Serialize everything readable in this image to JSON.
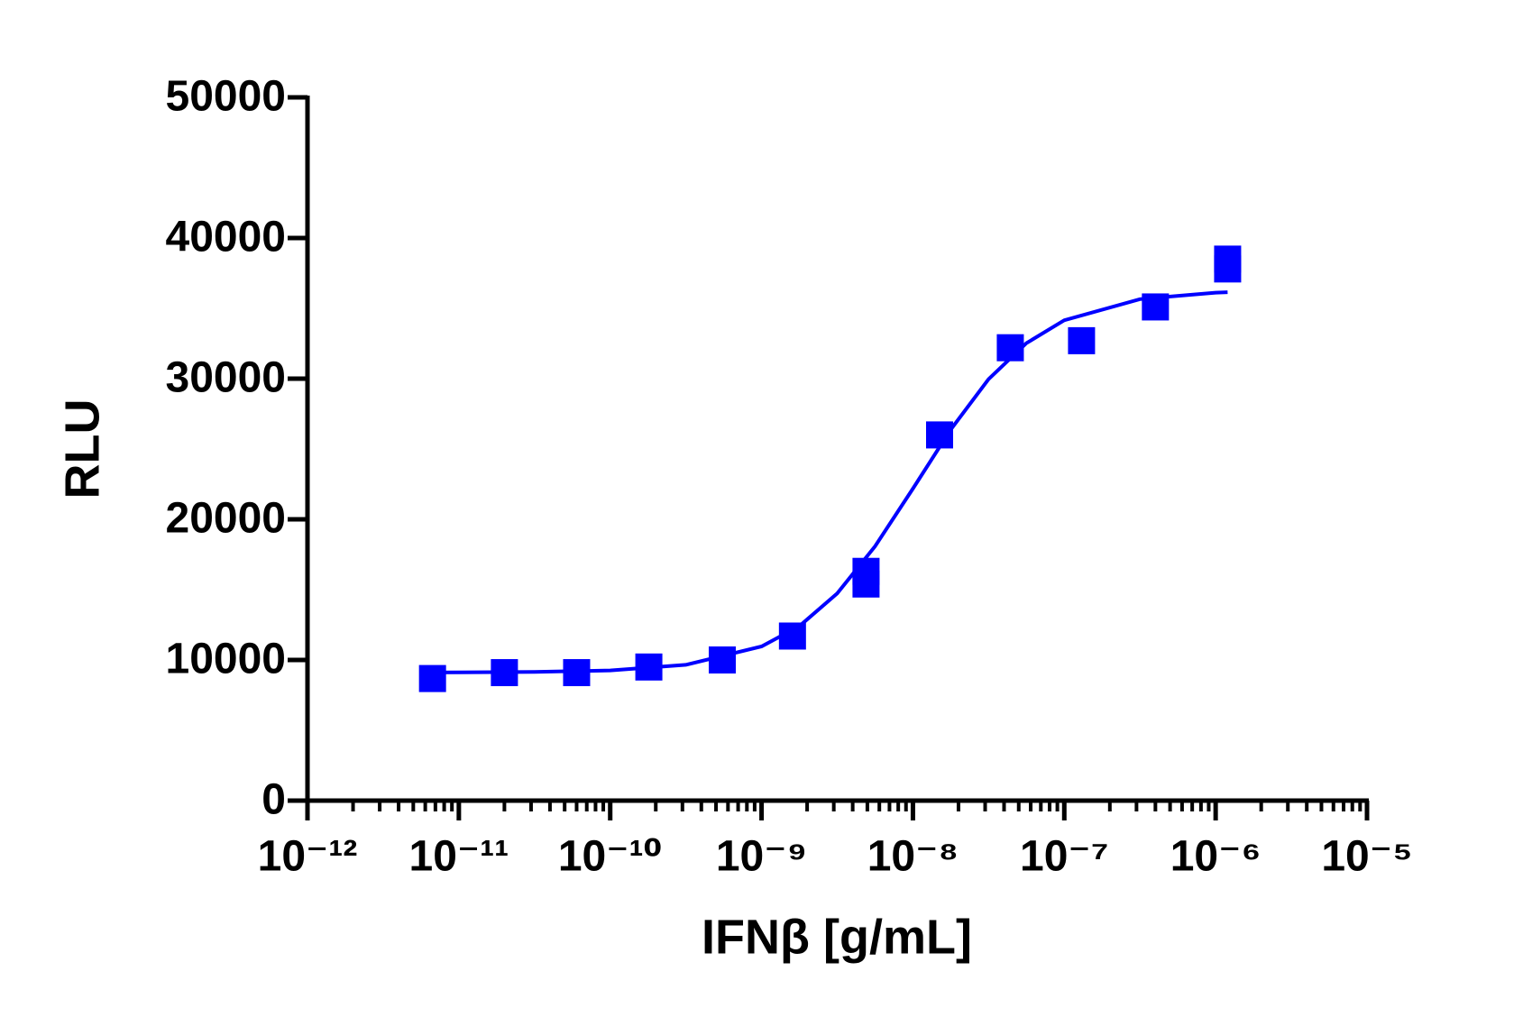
{
  "chart_data": {
    "type": "scatter",
    "xlabel": "IFNβ [g/mL]",
    "ylabel": "RLU",
    "xscale": "log",
    "xlim": [
      1e-12,
      1e-05
    ],
    "xticks": [
      {
        "value": 1e-12,
        "label": "10⁻¹²"
      },
      {
        "value": 1e-11,
        "label": "10⁻¹¹"
      },
      {
        "value": 1e-10,
        "label": "10⁻¹⁰"
      },
      {
        "value": 1e-09,
        "label": "10⁻⁹"
      },
      {
        "value": 1e-08,
        "label": "10⁻⁸"
      },
      {
        "value": 1e-07,
        "label": "10⁻⁷"
      },
      {
        "value": 1e-06,
        "label": "10⁻⁶"
      },
      {
        "value": 1e-05,
        "label": "10⁻⁵"
      }
    ],
    "ylim": [
      0,
      50000
    ],
    "yticks": [
      0,
      10000,
      20000,
      30000,
      40000,
      50000
    ],
    "series": [
      {
        "type": "line",
        "color": "#0000ff",
        "x": [
          6.31e-12,
          1e-11,
          3.16e-11,
          1e-10,
          3.16e-10,
          1e-09,
          1.78e-09,
          3.16e-09,
          5.62e-09,
          1e-08,
          1.78e-08,
          3.16e-08,
          5.62e-08,
          1e-07,
          3.16e-07,
          1e-06,
          1.2e-06
        ],
        "values": [
          9108,
          9113,
          9145,
          9258,
          9653,
          10963,
          12413,
          14732,
          18077,
          22180,
          26392,
          29959,
          32528,
          34153,
          35657,
          36116,
          36150
        ]
      },
      {
        "type": "scatter",
        "color": "#0000ff",
        "x": [
          6.7e-12,
          2e-11,
          6e-11,
          1.8e-10,
          5.5e-10,
          1.6e-09,
          4.9e-09,
          4.9e-09,
          1.5e-08,
          4.4e-08,
          1.3e-07,
          4e-07,
          1.2e-06,
          1.2e-06
        ],
        "values": [
          8680,
          9100,
          9100,
          9500,
          10000,
          11700,
          15400,
          16300,
          26000,
          32200,
          32700,
          35100,
          38500,
          37800
        ]
      }
    ]
  }
}
